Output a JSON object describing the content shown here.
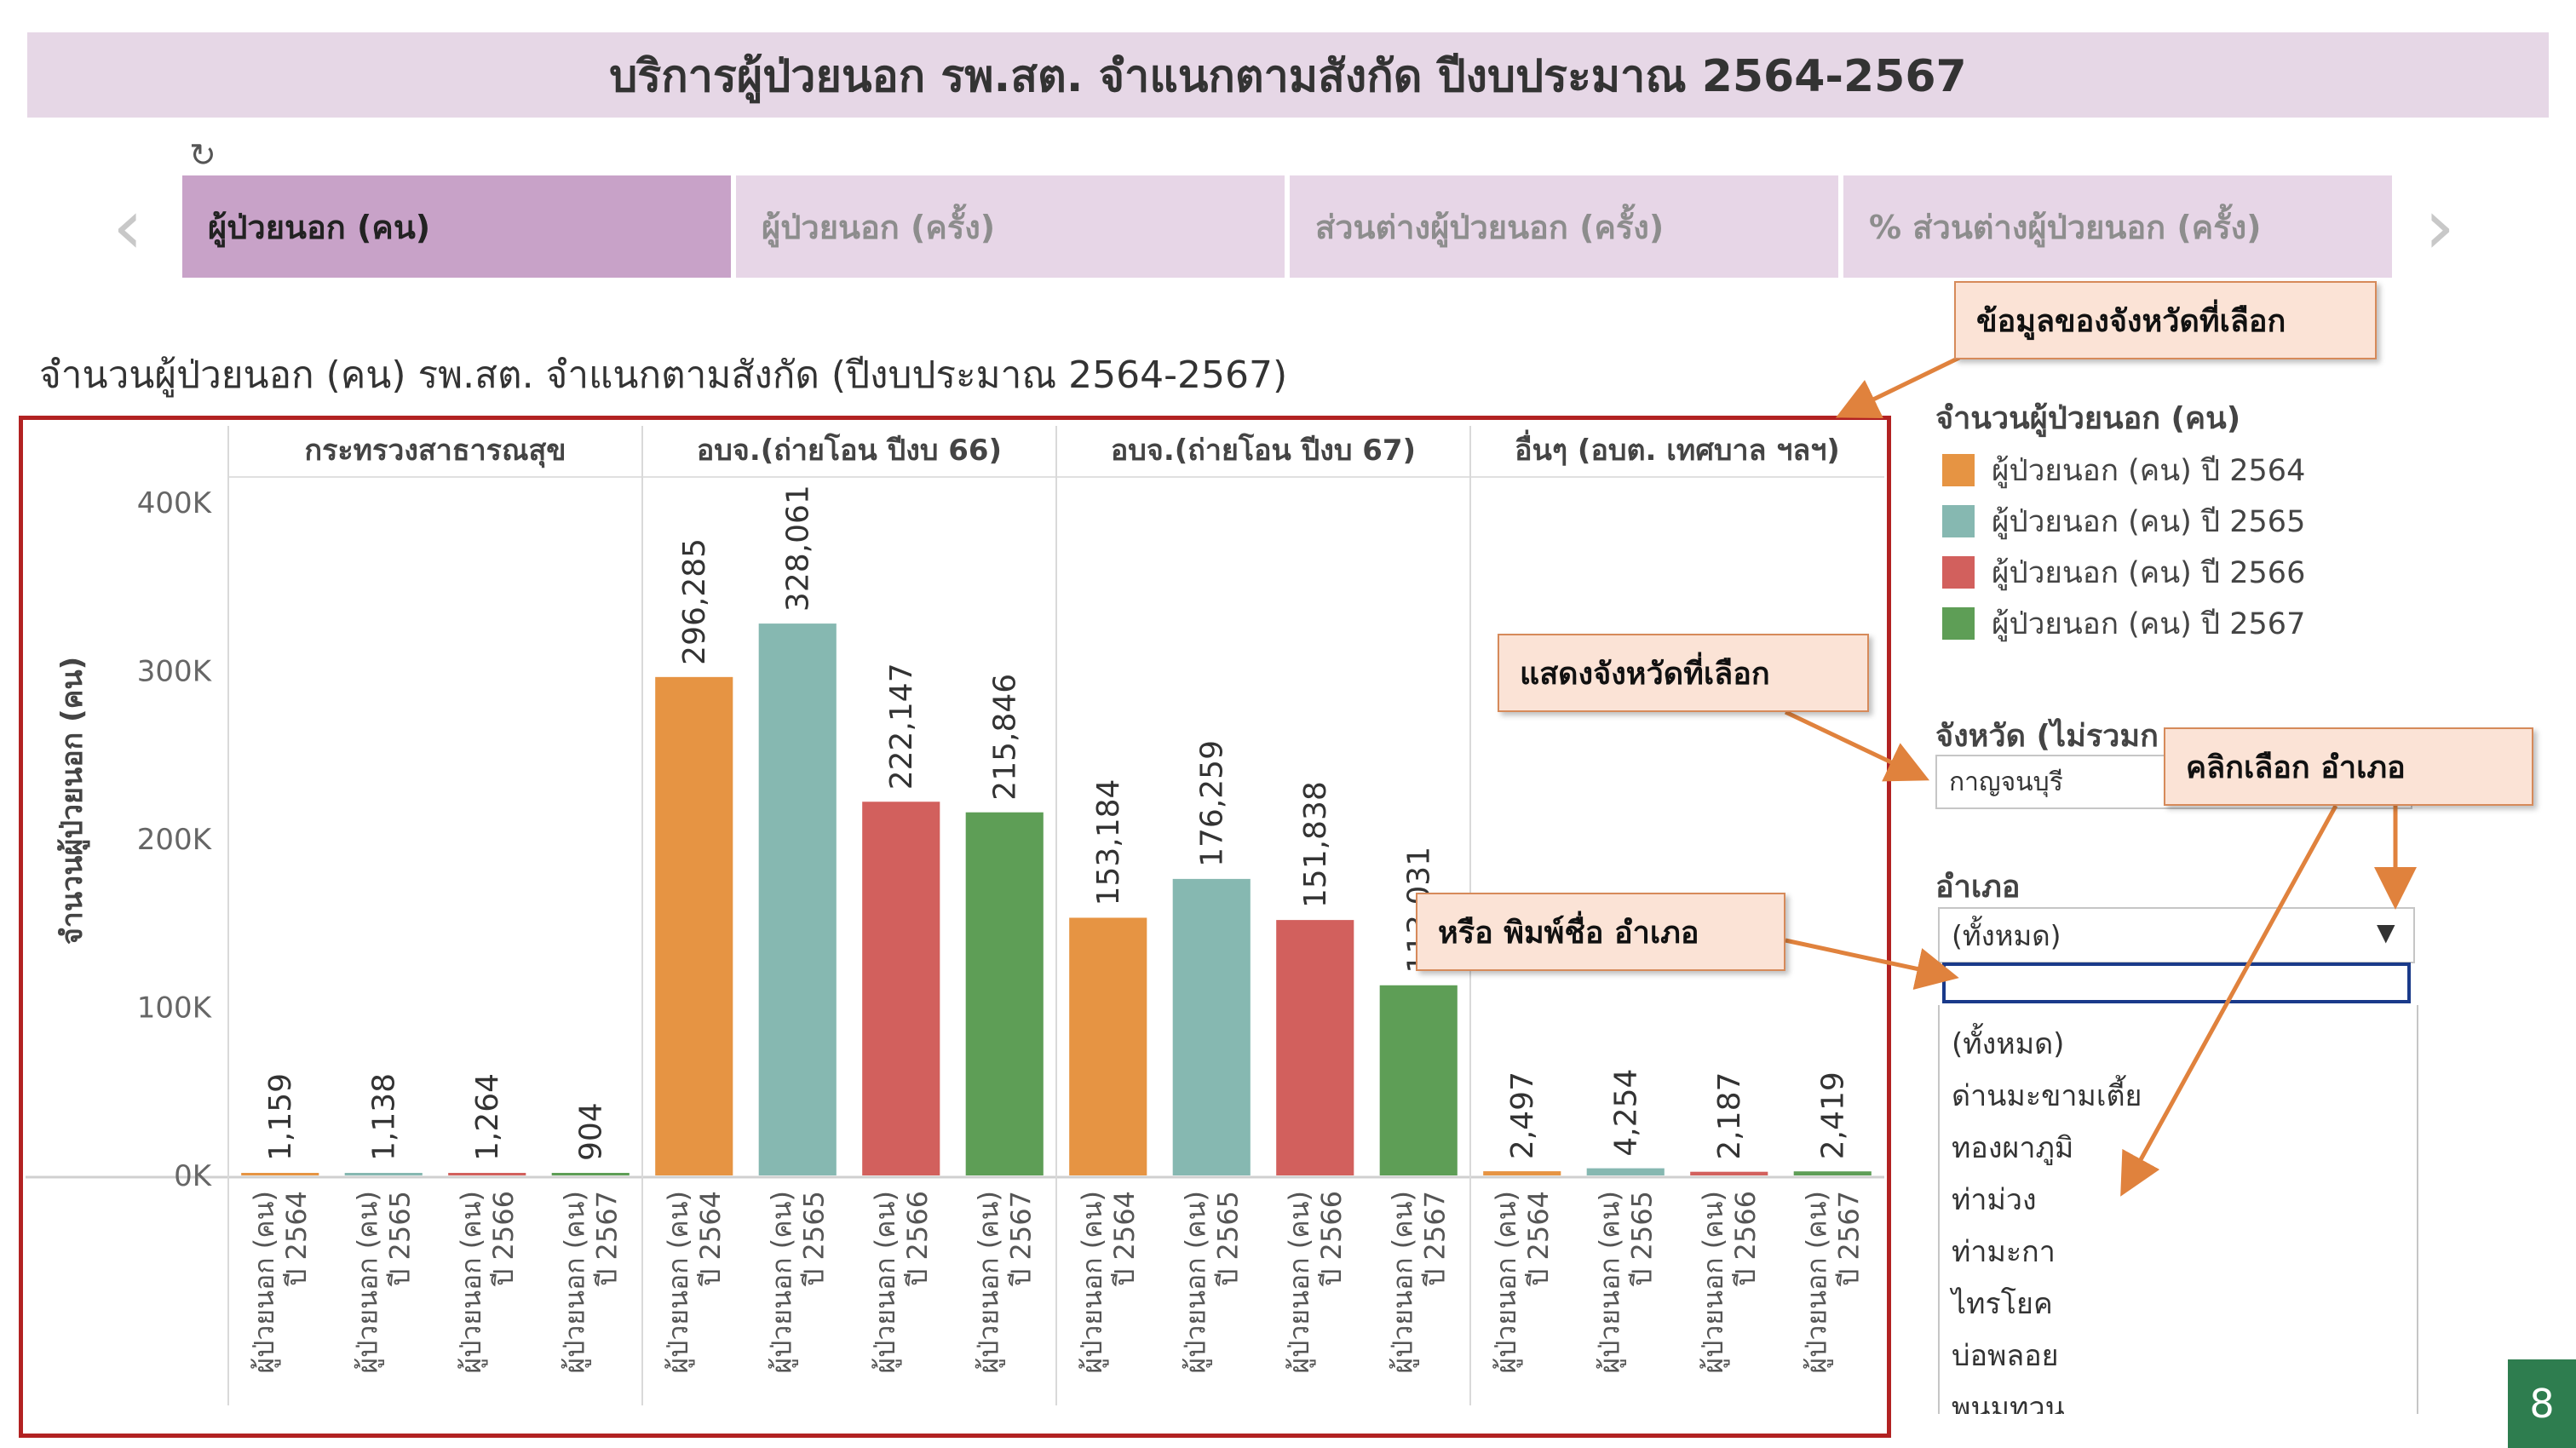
{
  "page_title": "บริการผู้ป่วยนอก รพ.สต. จำแนกตามสังกัด ปีงบประมาณ 2564-2567",
  "tabs": [
    {
      "label": "ผู้ป่วยนอก (คน)",
      "active": true
    },
    {
      "label": "ผู้ป่วยนอก (ครั้ง)",
      "active": false
    },
    {
      "label": "ส่วนต่างผู้ป่วยนอก (ครั้ง)",
      "active": false
    },
    {
      "label": "% ส่วนต่างผู้ป่วยนอก (ครั้ง)",
      "active": false
    }
  ],
  "icons": {
    "refresh": "refresh-icon",
    "prev": "chevron-left-icon",
    "next": "chevron-right-icon",
    "dropdown": "triangle-down-icon"
  },
  "chart_title": "จำนวนผู้ป่วยนอก (คน) รพ.สต. จำแนกตามสังกัด (ปีงบประมาณ 2564-2567)",
  "chart_data": {
    "type": "bar",
    "ylabel": "จำนวนผู้ป่วยนอก (คน)",
    "ylim": [
      0,
      400000
    ],
    "yticks": [
      0,
      100000,
      200000,
      300000,
      400000
    ],
    "ytick_labels": [
      "0K",
      "100K",
      "200K",
      "300K",
      "400K"
    ],
    "grid": false,
    "groups": [
      "กระทรวงสาธารณสุข",
      "อบจ.(ถ่ายโอน ปีงบ 66)",
      "อบจ.(ถ่ายโอน ปีงบ 67)",
      "อื่นๆ (อบต. เทศบาล ฯลฯ)"
    ],
    "category_label": [
      "ผู้ป่วยนอก (คน)",
      "ปี 2564",
      "ปี 2565",
      "ปี 2566",
      "ปี 2567"
    ],
    "series": [
      {
        "name": "ผู้ป่วยนอก (คน) ปี 2564",
        "color": "#e69443",
        "values": [
          1159,
          296285,
          153184,
          2497
        ],
        "labels": [
          "1,159",
          "296,285",
          "153,184",
          "2,497"
        ]
      },
      {
        "name": "ผู้ป่วยนอก (คน) ปี 2565",
        "color": "#86b8b1",
        "values": [
          1138,
          328061,
          176259,
          4254
        ],
        "labels": [
          "1,138",
          "328,061",
          "176,259",
          "4,254"
        ]
      },
      {
        "name": "ผู้ป่วยนอก (คน) ปี 2566",
        "color": "#d2605d",
        "values": [
          1264,
          222147,
          151838,
          2187
        ],
        "labels": [
          "1,264",
          "222,147",
          "151,838",
          "2,187"
        ]
      },
      {
        "name": "ผู้ป่วยนอก (คน) ปี 2567",
        "color": "#5e9e56",
        "values": [
          904,
          215846,
          113031,
          2419
        ],
        "labels": [
          "904",
          "215,846",
          "113,031",
          "2,419"
        ]
      }
    ]
  },
  "legend": {
    "title": "จำนวนผู้ป่วยนอก (คน)",
    "items": [
      {
        "label": "ผู้ป่วยนอก (คน) ปี 2564",
        "color": "#e69443"
      },
      {
        "label": "ผู้ป่วยนอก (คน) ปี 2565",
        "color": "#86b8b1"
      },
      {
        "label": "ผู้ป่วยนอก (คน) ปี 2566",
        "color": "#d2605d"
      },
      {
        "label": "ผู้ป่วยนอก (คน) ปี 2567",
        "color": "#5e9e56"
      }
    ]
  },
  "filters": {
    "province_label": "จังหวัด (ไม่รวมก",
    "province_value": "กาญจนบุรี",
    "district_label": "อำเภอ",
    "district_value": "(ทั้งหมด)",
    "district_options": [
      "(ทั้งหมด)",
      "ด่านมะขามเตี้ย",
      "ทองผาภูมิ",
      "ท่าม่วง",
      "ท่ามะกา",
      "ไทรโยค",
      "บ่อพลอย",
      "พนมทวน"
    ]
  },
  "annotations": {
    "selected_province_data": "ข้อมูลของจังหวัดที่เลือก",
    "show_selected_province": "แสดงจังหวัดที่เลือก",
    "click_select_district": "คลิกเลือก อำเภอ",
    "or_type_district": "หรือ พิมพ์ชื่อ อำเภอ"
  },
  "page_number": "8",
  "colors": {
    "title_bg": "#e6d7e6",
    "tab_active": "#c8a2c8",
    "tab_inactive": "#e7d6e7",
    "frame": "#b22222",
    "callout_bg": "#fbe3d6",
    "callout_arrow": "#e0823d",
    "page_num_bg": "#2e7d4f"
  }
}
